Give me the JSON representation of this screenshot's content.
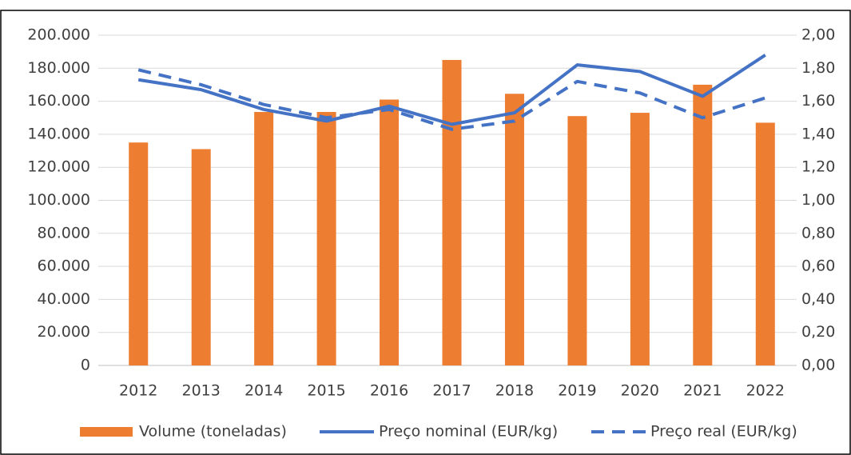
{
  "chart_data": {
    "type": "combo",
    "categories": [
      "2012",
      "2013",
      "2014",
      "2015",
      "2016",
      "2017",
      "2018",
      "2019",
      "2020",
      "2021",
      "2022"
    ],
    "series": [
      {
        "name": "Volume (toneladas)",
        "type": "bar",
        "color": "#ed7d31",
        "axis": "y",
        "values": [
          135000,
          131000,
          153500,
          153500,
          161000,
          185000,
          164500,
          151000,
          153000,
          170000,
          147000
        ]
      },
      {
        "name": "Preço nominal (EUR/kg)",
        "type": "line",
        "color": "#4472c4",
        "axis": "y2",
        "dashed": false,
        "values": [
          1.73,
          1.67,
          1.55,
          1.48,
          1.57,
          1.46,
          1.53,
          1.82,
          1.78,
          1.63,
          1.88
        ]
      },
      {
        "name": "Preço real (EUR/kg)",
        "type": "line",
        "color": "#4472c4",
        "axis": "y2",
        "dashed": true,
        "values": [
          1.79,
          1.7,
          1.58,
          1.5,
          1.55,
          1.43,
          1.48,
          1.72,
          1.65,
          1.5,
          1.62
        ]
      }
    ],
    "ylim": [
      0,
      200000
    ],
    "yticks": [
      0,
      {
        "value": 20000,
        "label": "20.000"
      },
      {
        "value": 40000,
        "label": "40.000"
      },
      {
        "value": 60000,
        "label": "60.000"
      },
      {
        "value": 80000,
        "label": "80.000"
      },
      {
        "value": 100000,
        "label": "100.000"
      },
      {
        "value": 120000,
        "label": "120.000"
      },
      {
        "value": 140000,
        "label": "140.000"
      },
      {
        "value": 160000,
        "label": "160.000"
      },
      {
        "value": 180000,
        "label": "180.000"
      },
      {
        "value": 200000,
        "label": "200.000"
      }
    ],
    "y2lim": [
      0,
      2
    ],
    "y2ticks": [
      {
        "value": 0,
        "label": "0,00"
      },
      {
        "value": 0.2,
        "label": "0,20"
      },
      {
        "value": 0.4,
        "label": "0,40"
      },
      {
        "value": 0.6,
        "label": "0,60"
      },
      {
        "value": 0.8,
        "label": "0,80"
      },
      {
        "value": 1,
        "label": "1,00"
      },
      {
        "value": 1.2,
        "label": "1,20"
      },
      {
        "value": 1.4,
        "label": "1,40"
      },
      {
        "value": 1.6,
        "label": "1,60"
      },
      {
        "value": 1.8,
        "label": "1,80"
      },
      {
        "value": 2,
        "label": "2,00"
      }
    ],
    "grid": true,
    "legend": "bottom"
  }
}
